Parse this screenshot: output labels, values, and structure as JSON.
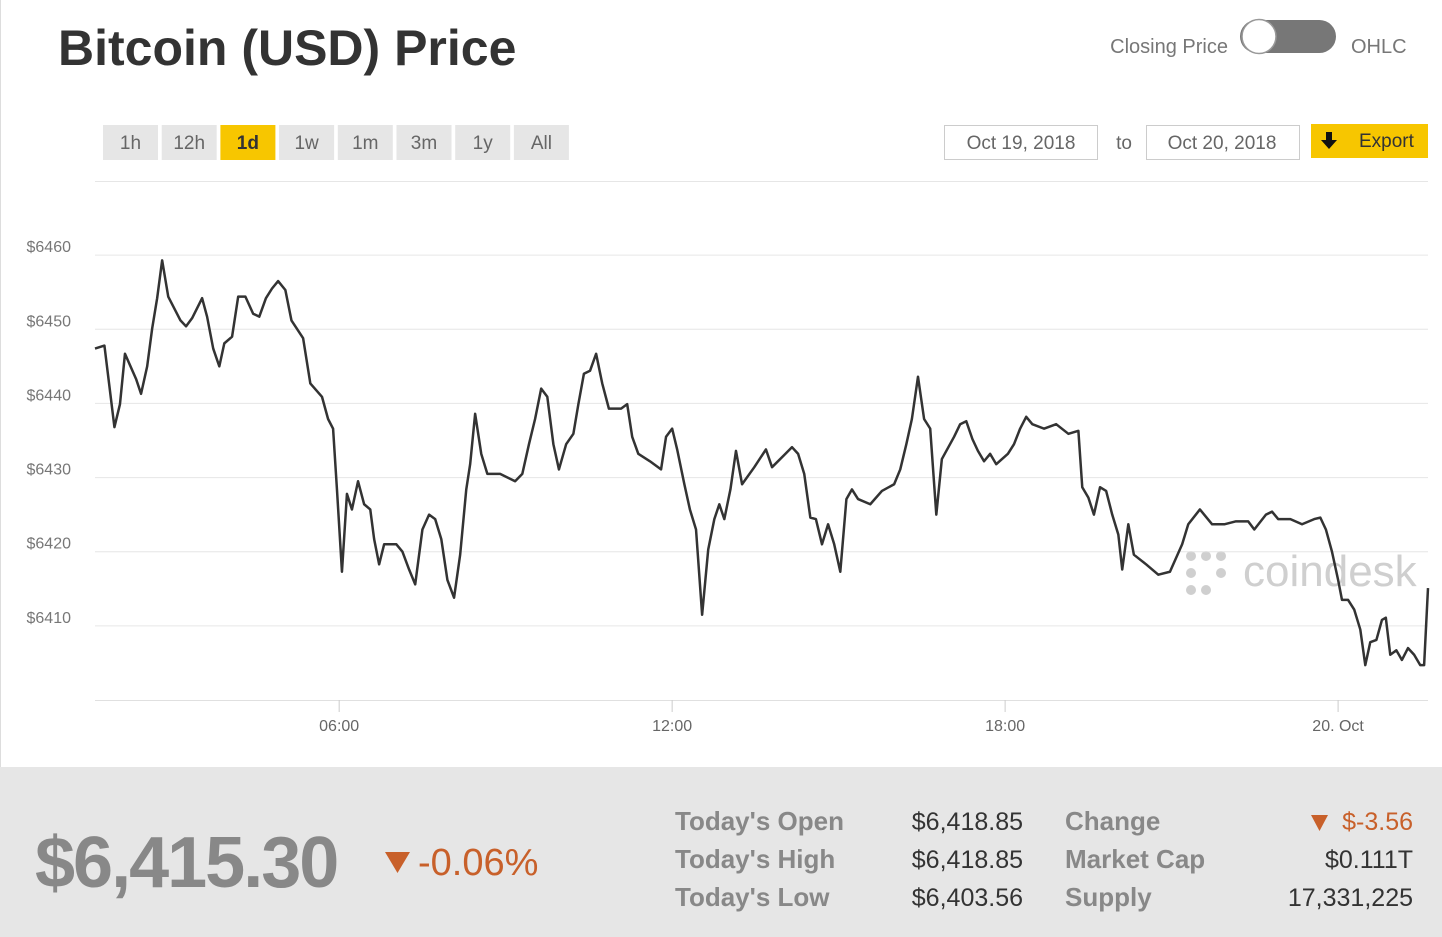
{
  "header": {
    "toggle_left": "Closing Price",
    "toggle_right": "OHLC"
  },
  "controls": {
    "ranges": [
      {
        "label": "1h"
      },
      {
        "label": "12h"
      },
      {
        "label": "1d",
        "selected": true
      },
      {
        "label": "1w"
      },
      {
        "label": "1m"
      },
      {
        "label": "3m"
      },
      {
        "label": "1y"
      },
      {
        "label": "All"
      }
    ],
    "date_from": "Oct 19, 2018",
    "date_separator": "to",
    "date_to": "Oct 20, 2018",
    "export": "Export"
  },
  "chart_data": {
    "type": "line",
    "title": "Bitcoin (USD) Price",
    "watermark": "coindesk",
    "color": "#333333",
    "x": [
      1.6,
      1.77,
      1.95,
      2.05,
      2.14,
      2.34,
      2.43,
      2.54,
      2.63,
      2.72,
      2.81,
      2.92,
      3.14,
      3.24,
      3.35,
      3.53,
      3.62,
      3.73,
      3.84,
      3.93,
      4.07,
      4.18,
      4.31,
      4.45,
      4.56,
      4.68,
      4.79,
      4.9,
      5.03,
      5.14,
      5.35,
      5.48,
      5.69,
      5.8,
      5.89,
      5.96,
      6.05,
      6.14,
      6.23,
      6.34,
      6.45,
      6.56,
      6.63,
      6.72,
      6.81,
      7.03,
      7.14,
      7.26,
      7.37,
      7.5,
      7.62,
      7.73,
      7.84,
      7.95,
      8.07,
      8.18,
      8.29,
      8.36,
      8.45,
      8.56,
      8.67,
      8.9,
      9.17,
      9.3,
      9.42,
      9.53,
      9.64,
      9.75,
      9.86,
      9.96,
      10.09,
      10.22,
      10.31,
      10.41,
      10.52,
      10.63,
      10.74,
      10.86,
      11.08,
      11.19,
      11.28,
      11.39,
      11.6,
      11.8,
      11.89,
      12.0,
      12.09,
      12.22,
      12.32,
      12.43,
      12.54,
      12.65,
      12.76,
      12.85,
      12.94,
      13.05,
      13.15,
      13.26,
      13.48,
      13.69,
      13.8,
      14.04,
      14.16,
      14.27,
      14.38,
      14.49,
      14.59,
      14.7,
      14.81,
      14.92,
      15.03,
      15.14,
      15.24,
      15.35,
      15.57,
      15.78,
      16.0,
      16.11,
      16.22,
      16.32,
      16.43,
      16.54,
      16.65,
      16.76,
      16.86,
      17.08,
      17.19,
      17.3,
      17.41,
      17.51,
      17.62,
      17.73,
      17.84,
      18.05,
      18.16,
      18.27,
      18.38,
      18.49,
      18.7,
      18.92,
      19.14,
      19.32,
      19.39,
      19.5,
      19.6,
      19.71,
      19.82,
      19.93,
      20.04,
      20.11,
      20.22,
      20.32,
      20.54,
      20.76,
      20.97,
      21.19,
      21.3,
      21.51,
      21.73,
      21.95,
      22.16,
      22.38,
      22.49,
      22.7,
      22.81,
      22.92,
      23.14,
      23.35,
      23.57,
      23.68,
      23.78,
      23.89,
      24.0,
      24.07,
      24.18,
      24.29,
      24.4,
      24.49,
      24.58,
      24.69,
      24.79,
      24.86,
      24.94,
      25.05,
      25.15,
      25.26,
      25.37,
      25.48,
      25.55,
      25.62
    ],
    "values": [
      6447.4,
      6447.8,
      6436.8,
      6439.9,
      6446.7,
      6443.3,
      6441.3,
      6445.0,
      6450.1,
      6454.2,
      6459.3,
      6454.4,
      6451.2,
      6450.4,
      6451.5,
      6454.2,
      6451.7,
      6447.4,
      6445.0,
      6448.1,
      6449.0,
      6454.4,
      6454.4,
      6452.1,
      6451.7,
      6454.2,
      6455.5,
      6456.5,
      6455.3,
      6451.2,
      6448.8,
      6442.7,
      6440.9,
      6437.9,
      6436.6,
      6428.4,
      6417.3,
      6427.8,
      6425.7,
      6429.5,
      6426.4,
      6425.7,
      6421.7,
      6418.3,
      6421.0,
      6421.0,
      6420.0,
      6417.6,
      6415.6,
      6423.0,
      6425.0,
      6424.4,
      6421.7,
      6416.2,
      6413.8,
      6419.6,
      6428.4,
      6431.8,
      6438.6,
      6433.2,
      6430.5,
      6430.5,
      6429.5,
      6430.5,
      6434.5,
      6437.9,
      6442.0,
      6440.9,
      6434.5,
      6431.1,
      6434.5,
      6435.9,
      6439.9,
      6444.0,
      6444.4,
      6446.7,
      6442.7,
      6439.3,
      6439.3,
      6439.9,
      6435.5,
      6433.2,
      6432.2,
      6431.1,
      6435.5,
      6436.6,
      6433.8,
      6429.1,
      6425.7,
      6423.0,
      6411.5,
      6420.3,
      6424.4,
      6426.4,
      6424.4,
      6428.4,
      6433.6,
      6429.1,
      6431.4,
      6433.8,
      6431.4,
      6433.2,
      6434.1,
      6433.2,
      6430.5,
      6424.6,
      6424.4,
      6421.0,
      6423.7,
      6421.0,
      6417.3,
      6427.1,
      6428.4,
      6427.1,
      6426.4,
      6428.2,
      6429.1,
      6431.1,
      6434.5,
      6437.9,
      6443.6,
      6437.9,
      6436.6,
      6425.0,
      6432.5,
      6435.5,
      6437.2,
      6437.6,
      6435.2,
      6433.6,
      6432.2,
      6433.2,
      6431.8,
      6433.2,
      6434.5,
      6436.6,
      6438.2,
      6437.2,
      6436.6,
      6437.2,
      6435.9,
      6436.3,
      6428.7,
      6427.3,
      6425.0,
      6428.7,
      6428.2,
      6425.0,
      6422.3,
      6417.6,
      6423.7,
      6419.6,
      6418.3,
      6416.9,
      6417.3,
      6421.0,
      6423.7,
      6425.7,
      6423.7,
      6423.7,
      6424.1,
      6424.1,
      6423.0,
      6425.0,
      6425.4,
      6424.4,
      6424.4,
      6423.7,
      6424.4,
      6424.6,
      6423.0,
      6420.0,
      6416.2,
      6413.5,
      6413.5,
      6412.2,
      6409.5,
      6404.7,
      6407.8,
      6408.1,
      6410.8,
      6411.1,
      6406.1,
      6406.7,
      6405.4,
      6407.0,
      6406.1,
      6404.7,
      6404.7,
      6415.1
    ],
    "xlim": [
      1.6,
      25.62
    ],
    "xticks": [
      {
        "value": 6,
        "label": "06:00"
      },
      {
        "value": 12,
        "label": "12:00"
      },
      {
        "value": 18,
        "label": "18:00"
      },
      {
        "value": 24,
        "label": "20. Oct"
      }
    ],
    "ylim": [
      6400,
      6470
    ],
    "yticks": [
      {
        "value": 6410,
        "label": "$6410"
      },
      {
        "value": 6420,
        "label": "$6420"
      },
      {
        "value": 6430,
        "label": "$6430"
      },
      {
        "value": 6440,
        "label": "$6440"
      },
      {
        "value": 6450,
        "label": "$6450"
      },
      {
        "value": 6460,
        "label": "$6460"
      }
    ],
    "grid": true
  },
  "summary": {
    "price": "$6,415.30",
    "change_percent": "-0.06%",
    "stats": [
      {
        "label": "Today's Open",
        "value": "$6,418.85"
      },
      {
        "label": "Today's High",
        "value": "$6,418.85"
      },
      {
        "label": "Today's Low",
        "value": "$6,403.56"
      },
      {
        "label": "Change",
        "value": "$-3.56"
      },
      {
        "label": "Market Cap",
        "value": "$0.111T"
      },
      {
        "label": "Supply",
        "value": "17,331,225"
      }
    ]
  }
}
